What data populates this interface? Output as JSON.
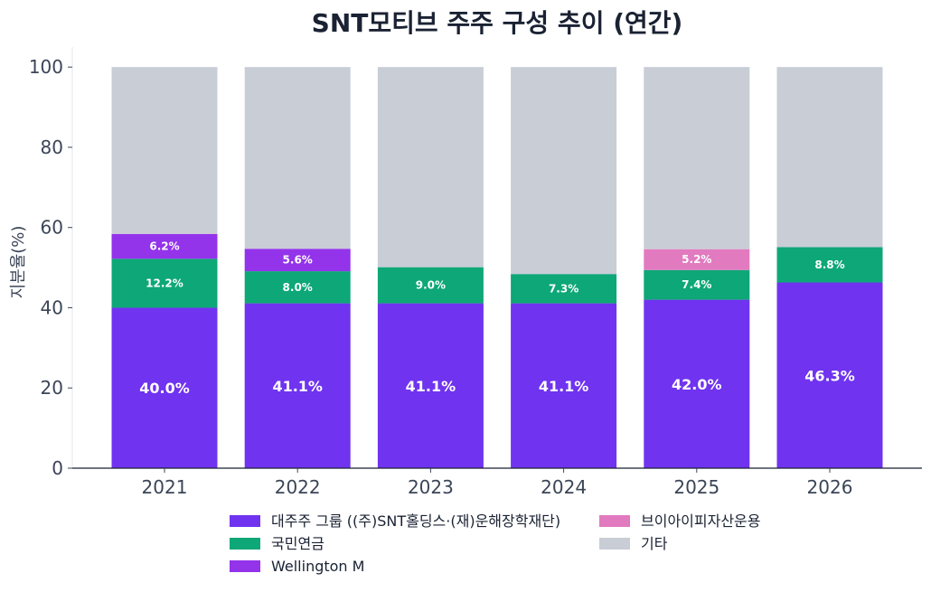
{
  "chart_data": {
    "type": "bar",
    "stacked": true,
    "title": "SNT모티브 주주 구성 추이 (연간)",
    "xlabel": "",
    "ylabel": "지분율(%)",
    "ylim": [
      0,
      105
    ],
    "yticks": [
      0,
      20,
      40,
      60,
      80,
      100
    ],
    "categories": [
      "2021",
      "2022",
      "2023",
      "2024",
      "2025",
      "2026"
    ],
    "series": [
      {
        "name": "대주주 그룹 ((주)SNT홀딩스·(재)운해장학재단)",
        "color": "#7033f0",
        "values": [
          40.0,
          41.1,
          41.1,
          41.1,
          42.0,
          46.3
        ],
        "labels": [
          "40.0%",
          "41.1%",
          "41.1%",
          "41.1%",
          "42.0%",
          "46.3%"
        ]
      },
      {
        "name": "국민연금",
        "color": "#0ea777",
        "values": [
          12.2,
          8.0,
          9.0,
          7.3,
          7.4,
          8.8
        ],
        "labels": [
          "12.2%",
          "8.0%",
          "9.0%",
          "7.3%",
          "7.4%",
          "8.8%"
        ]
      },
      {
        "name": "Wellington M",
        "color": "#9333ea",
        "values": [
          6.2,
          5.6,
          0,
          0,
          0,
          0
        ],
        "labels": [
          "6.2%",
          "5.6%",
          "",
          "",
          "",
          ""
        ]
      },
      {
        "name": "브이아이피자산운용",
        "color": "#e27ac0",
        "values": [
          0,
          0,
          0,
          0,
          5.2,
          0
        ],
        "labels": [
          "",
          "",
          "",
          "",
          "5.2%",
          ""
        ]
      },
      {
        "name": "기타",
        "color": "#c8cdd6",
        "values": [
          41.6,
          45.3,
          49.9,
          51.6,
          45.4,
          44.9
        ],
        "labels": [
          "",
          "",
          "",
          "",
          "",
          ""
        ]
      }
    ],
    "legend": {
      "position": "bottom",
      "columns": 2
    },
    "grid": false
  }
}
